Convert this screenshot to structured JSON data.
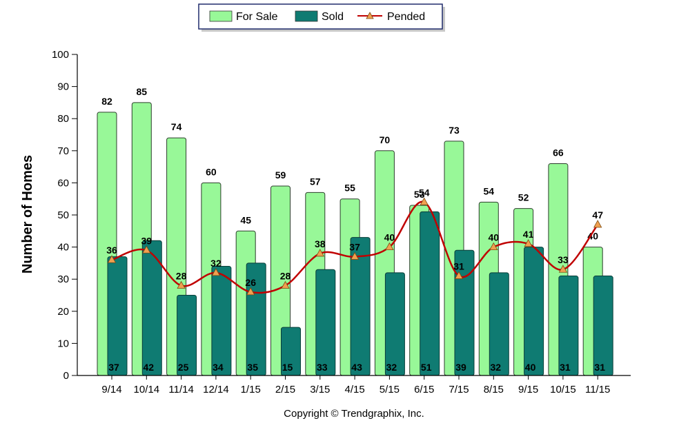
{
  "chart_data": {
    "type": "bar",
    "title": "",
    "xlabel": "",
    "ylabel": "Number of Homes",
    "ylim": [
      0,
      100
    ],
    "yticks": [
      0,
      10,
      20,
      30,
      40,
      50,
      60,
      70,
      80,
      90,
      100
    ],
    "grid": false,
    "legend_position": "top-center",
    "categories": [
      "9/14",
      "10/14",
      "11/14",
      "12/14",
      "1/15",
      "2/15",
      "3/15",
      "4/15",
      "5/15",
      "6/15",
      "7/15",
      "8/15",
      "9/15",
      "10/15",
      "11/15"
    ],
    "series": [
      {
        "name": "For Sale",
        "kind": "bar",
        "color": "#98f898",
        "values": [
          82,
          85,
          74,
          60,
          45,
          59,
          57,
          55,
          70,
          53,
          73,
          54,
          52,
          66,
          40
        ]
      },
      {
        "name": "Sold",
        "kind": "bar",
        "color": "#0f7b72",
        "values": [
          37,
          42,
          25,
          34,
          35,
          15,
          33,
          43,
          32,
          51,
          39,
          32,
          40,
          31,
          31
        ]
      },
      {
        "name": "Pended",
        "kind": "line",
        "color": "#c00000",
        "marker_color": "#f0a050",
        "values": [
          36,
          39,
          28,
          32,
          26,
          28,
          38,
          37,
          40,
          54,
          31,
          40,
          41,
          33,
          47
        ]
      }
    ]
  },
  "footer": {
    "copyright": "Copyright © Trendgraphix, Inc."
  }
}
